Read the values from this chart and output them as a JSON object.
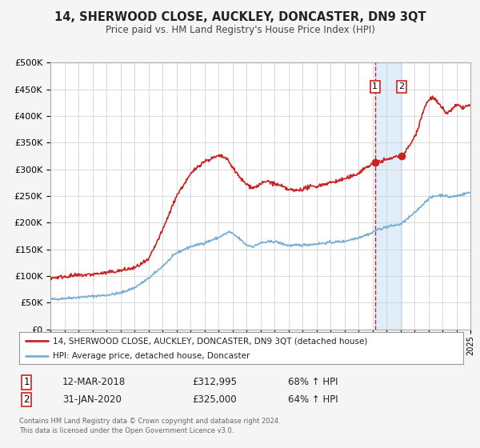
{
  "title": "14, SHERWOOD CLOSE, AUCKLEY, DONCASTER, DN9 3QT",
  "subtitle": "Price paid vs. HM Land Registry's House Price Index (HPI)",
  "legend_line1": "14, SHERWOOD CLOSE, AUCKLEY, DONCASTER, DN9 3QT (detached house)",
  "legend_line2": "HPI: Average price, detached house, Doncaster",
  "hpi_color": "#7bafd4",
  "price_color": "#cc2222",
  "sale1_date_label": "12-MAR-2018",
  "sale1_price_label": "£312,995",
  "sale1_hpi_label": "68% ↑ HPI",
  "sale1_date_x": 2018.19,
  "sale1_price": 312995,
  "sale2_date_label": "31-JAN-2020",
  "sale2_price_label": "£325,000",
  "sale2_hpi_label": "64% ↑ HPI",
  "sale2_date_x": 2020.08,
  "sale2_price": 325000,
  "ylim": [
    0,
    500000
  ],
  "xlim_start": 1995,
  "xlim_end": 2025,
  "footer": "Contains HM Land Registry data © Crown copyright and database right 2024.\nThis data is licensed under the Open Government Licence v3.0.",
  "background_color": "#f5f5f5",
  "plot_bg_color": "#ffffff",
  "grid_color": "#cccccc",
  "shade_color": "#cce4f7"
}
